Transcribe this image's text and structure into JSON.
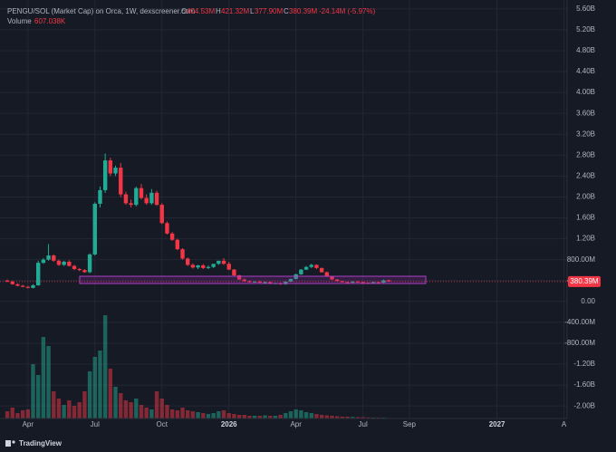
{
  "header": {
    "title": "PENGU/SOL (Market Cap) on Orca, 1W, dexscreener.com",
    "o_label": "O",
    "open": "404.53M",
    "h_label": "H",
    "high": "421.32M",
    "l_label": "L",
    "low": "377.90M",
    "c_label": "C",
    "close": "380.39M",
    "change": "-24.14M (-5.97%)",
    "volume_label": "Volume",
    "volume": "607.038K"
  },
  "footer": {
    "brand": "TradingView"
  },
  "chart_data": {
    "type": "candlestick",
    "up_color": "#22ab94",
    "down_color": "#f23645",
    "categories": [
      null,
      null,
      null,
      null,
      "Apr",
      null,
      null,
      null,
      null,
      null,
      null,
      null,
      null,
      null,
      null,
      null,
      null,
      "Jul",
      null,
      null,
      null,
      null,
      null,
      null,
      null,
      null,
      null,
      null,
      null,
      null,
      "Oct",
      null,
      null,
      null,
      null,
      null,
      null,
      null,
      null,
      null,
      null,
      null,
      null,
      "2026",
      null,
      null,
      null,
      null,
      null,
      null,
      null,
      null,
      null,
      null,
      null,
      null,
      "Apr",
      null,
      null,
      null,
      null,
      null,
      null,
      null,
      null,
      null,
      null,
      null,
      null,
      "Jul",
      null,
      null,
      null,
      null,
      null,
      null,
      null,
      null,
      "Sep",
      null,
      null,
      null,
      null,
      null,
      null,
      null,
      null,
      null,
      null,
      null,
      null,
      null,
      null,
      null,
      null,
      "2027",
      null,
      null,
      null,
      null,
      null,
      null,
      null,
      null,
      null,
      null,
      null,
      null,
      "A"
    ],
    "open": [
      400,
      380,
      330,
      300,
      280,
      260,
      310,
      740,
      800,
      880,
      780,
      700,
      760,
      680,
      620,
      600,
      560,
      900,
      1870,
      2130,
      2700,
      2450,
      2560,
      2050,
      1880,
      1850,
      2170,
      1980,
      1880,
      2080,
      1850,
      1500,
      1300,
      1180,
      1000,
      820,
      700,
      650,
      690,
      640,
      660,
      720,
      780,
      720,
      610,
      500,
      420,
      390,
      370,
      380,
      360,
      370,
      340,
      350,
      330,
      380,
      430,
      520,
      610,
      660,
      700,
      640,
      560,
      480,
      420,
      390,
      370,
      360,
      380,
      370,
      360,
      350,
      370,
      360,
      404.53,
      null,
      null,
      null,
      null,
      null,
      null,
      null,
      null,
      null,
      null,
      null,
      null,
      null,
      null,
      null,
      null,
      null,
      null,
      null,
      null,
      null,
      null,
      null,
      null,
      null,
      null,
      null,
      null,
      null,
      null,
      null,
      null,
      null,
      null
    ],
    "high": [
      420,
      400,
      350,
      320,
      300,
      330,
      780,
      830,
      1100,
      900,
      800,
      780,
      790,
      700,
      640,
      620,
      920,
      1900,
      2200,
      2830,
      2750,
      2600,
      2650,
      2100,
      1950,
      2200,
      2250,
      2050,
      2150,
      2120,
      1880,
      1530,
      1330,
      1200,
      1020,
      840,
      730,
      700,
      720,
      690,
      700,
      760,
      830,
      760,
      620,
      510,
      440,
      400,
      390,
      400,
      380,
      380,
      360,
      360,
      390,
      440,
      530,
      620,
      680,
      720,
      710,
      650,
      570,
      490,
      430,
      400,
      380,
      390,
      390,
      380,
      370,
      380,
      375,
      420,
      421.32,
      null,
      null,
      null,
      null,
      null,
      null,
      null,
      null,
      null,
      null,
      null,
      null,
      null,
      null,
      null,
      null,
      null,
      null,
      null,
      null,
      null,
      null,
      null,
      null,
      null,
      null,
      null,
      null,
      null,
      null,
      null,
      null,
      null,
      null
    ],
    "low": [
      370,
      320,
      290,
      270,
      250,
      250,
      300,
      720,
      780,
      760,
      680,
      680,
      670,
      600,
      580,
      550,
      540,
      880,
      1800,
      2080,
      2400,
      2400,
      2000,
      1850,
      1800,
      1820,
      1950,
      1850,
      1850,
      1830,
      1480,
      1280,
      1160,
      980,
      800,
      680,
      630,
      620,
      620,
      620,
      640,
      700,
      700,
      600,
      490,
      410,
      380,
      360,
      360,
      350,
      350,
      330,
      330,
      320,
      320,
      370,
      420,
      510,
      600,
      640,
      620,
      550,
      470,
      410,
      380,
      360,
      350,
      350,
      360,
      350,
      340,
      340,
      350,
      350,
      377.9,
      null,
      null,
      null,
      null,
      null,
      null,
      null,
      null,
      null,
      null,
      null,
      null,
      null,
      null,
      null,
      null,
      null,
      null,
      null,
      null,
      null,
      null,
      null,
      null,
      null,
      null,
      null,
      null,
      null,
      null,
      null,
      null,
      null,
      null
    ],
    "close": [
      380,
      330,
      300,
      280,
      260,
      310,
      740,
      800,
      880,
      780,
      700,
      760,
      680,
      620,
      600,
      560,
      900,
      1870,
      2130,
      2700,
      2450,
      2560,
      2050,
      1880,
      1850,
      2170,
      1980,
      1880,
      2080,
      1850,
      1500,
      1300,
      1180,
      1000,
      820,
      700,
      650,
      690,
      640,
      660,
      720,
      780,
      720,
      610,
      500,
      420,
      390,
      370,
      380,
      360,
      370,
      340,
      350,
      330,
      380,
      430,
      520,
      610,
      660,
      700,
      640,
      560,
      480,
      420,
      390,
      370,
      360,
      380,
      370,
      360,
      350,
      370,
      360,
      404.53,
      380.39,
      null,
      null,
      null,
      null,
      null,
      null,
      null,
      null,
      null,
      null,
      null,
      null,
      null,
      null,
      null,
      null,
      null,
      null,
      null,
      null,
      null,
      null,
      null,
      null,
      null,
      null,
      null,
      null,
      null,
      null,
      null,
      null,
      null,
      null
    ],
    "volume": [
      8000,
      12000,
      6000,
      9000,
      10000,
      60000,
      48000,
      90000,
      80000,
      30000,
      22000,
      15000,
      20000,
      14000,
      18000,
      30000,
      52000,
      68000,
      75000,
      114000,
      55000,
      35000,
      28000,
      20000,
      18000,
      22000,
      15000,
      12000,
      10000,
      30000,
      22000,
      15000,
      10000,
      9000,
      12000,
      9000,
      8000,
      7000,
      6000,
      5000,
      6000,
      8000,
      9000,
      6000,
      5000,
      4000,
      4000,
      3000,
      3000,
      3000,
      3500,
      3000,
      3000,
      4000,
      6000,
      8000,
      10000,
      9000,
      7000,
      6000,
      5000,
      4000,
      3500,
      3000,
      2500,
      2000,
      2000,
      1800,
      1500,
      1500,
      1200,
      1000,
      1000,
      900,
      607.038,
      null,
      null,
      null,
      null,
      null,
      null,
      null,
      null,
      null,
      null,
      null,
      null,
      null,
      null,
      null,
      null,
      null,
      null,
      null,
      null,
      null,
      null,
      null,
      null,
      null,
      null,
      null,
      null,
      null,
      null,
      null,
      null,
      null,
      null
    ],
    "ylim": [
      -2240,
      5770
    ],
    "y2lim": [
      0,
      462000
    ],
    "yticks": [
      {
        "value": -2000,
        "label": "-2.00B"
      },
      {
        "value": -1600,
        "label": "-1.60B"
      },
      {
        "value": -1200,
        "label": "-1.20B"
      },
      {
        "value": -800,
        "label": "-800.00M"
      },
      {
        "value": -400,
        "label": "-400.00M"
      },
      {
        "value": 0,
        "label": "0.00"
      },
      {
        "value": 400,
        "label": "400.00M"
      },
      {
        "value": 800,
        "label": "800.00M"
      },
      {
        "value": 1200,
        "label": "1.20B"
      },
      {
        "value": 1600,
        "label": "1.60B"
      },
      {
        "value": 2000,
        "label": "2.00B"
      },
      {
        "value": 2400,
        "label": "2.40B"
      },
      {
        "value": 2800,
        "label": "2.80B"
      },
      {
        "value": 3200,
        "label": "3.20B"
      },
      {
        "value": 3600,
        "label": "3.60B"
      },
      {
        "value": 4000,
        "label": "4.00B"
      },
      {
        "value": 4400,
        "label": "4.40B"
      },
      {
        "value": 4800,
        "label": "4.80B"
      },
      {
        "value": 5200,
        "label": "5.20B"
      },
      {
        "value": 5600,
        "label": "5.60B"
      }
    ],
    "grid": true
  }
}
